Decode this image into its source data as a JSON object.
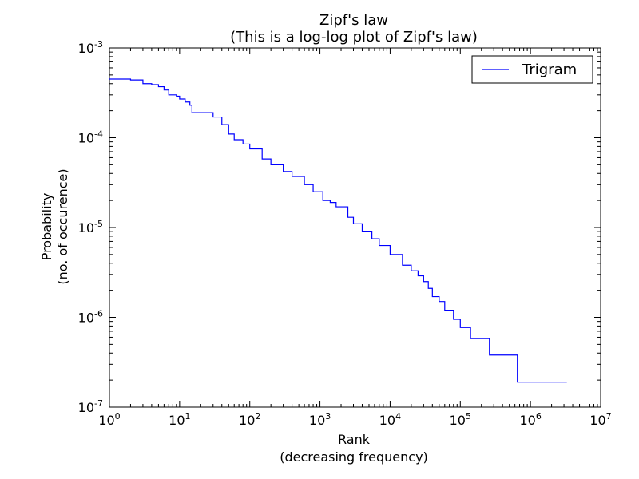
{
  "chart_data": {
    "type": "line",
    "title": "Zipf's law",
    "subtitle": "(This is a log-log plot of Zipf's law)",
    "xlabel_line1": "Rank",
    "xlabel_line2": "(decreasing frequency)",
    "ylabel_line1": "Probability",
    "ylabel_line2": "(no. of occurence)",
    "x_scale": "log",
    "y_scale": "log",
    "xlim": [
      1,
      10000000
    ],
    "ylim": [
      1e-07,
      0.001
    ],
    "x_ticks": [
      {
        "base": "10",
        "exp": "0"
      },
      {
        "base": "10",
        "exp": "1"
      },
      {
        "base": "10",
        "exp": "2"
      },
      {
        "base": "10",
        "exp": "3"
      },
      {
        "base": "10",
        "exp": "4"
      },
      {
        "base": "10",
        "exp": "5"
      },
      {
        "base": "10",
        "exp": "6"
      },
      {
        "base": "10",
        "exp": "7"
      }
    ],
    "y_ticks": [
      {
        "base": "10",
        "exp": "-7"
      },
      {
        "base": "10",
        "exp": "-6"
      },
      {
        "base": "10",
        "exp": "-5"
      },
      {
        "base": "10",
        "exp": "-4"
      },
      {
        "base": "10",
        "exp": "-3"
      }
    ],
    "grid": false,
    "legend": {
      "position": "top-right"
    },
    "series": [
      {
        "name": "Trigram",
        "color": "#0000ff",
        "step": true,
        "points": [
          [
            1,
            0.00045
          ],
          [
            2,
            0.00044
          ],
          [
            3,
            0.0004
          ],
          [
            4,
            0.00039
          ],
          [
            5,
            0.00037
          ],
          [
            6,
            0.00034
          ],
          [
            7,
            0.0003
          ],
          [
            9,
            0.00029
          ],
          [
            10,
            0.00027
          ],
          [
            12,
            0.00025
          ],
          [
            14,
            0.00023
          ],
          [
            15,
            0.00019
          ],
          [
            27,
            0.00019
          ],
          [
            30,
            0.00017
          ],
          [
            40,
            0.00014
          ],
          [
            50,
            0.00011
          ],
          [
            60,
            9.5e-05
          ],
          [
            80,
            8.5e-05
          ],
          [
            100,
            7.5e-05
          ],
          [
            150,
            5.8e-05
          ],
          [
            200,
            5e-05
          ],
          [
            300,
            4.2e-05
          ],
          [
            400,
            3.7e-05
          ],
          [
            600,
            3e-05
          ],
          [
            800,
            2.5e-05
          ],
          [
            1100,
            2e-05
          ],
          [
            1400,
            1.9e-05
          ],
          [
            1700,
            1.7e-05
          ],
          [
            2500,
            1.3e-05
          ],
          [
            3000,
            1.1e-05
          ],
          [
            4000,
            9.1e-06
          ],
          [
            5500,
            7.5e-06
          ],
          [
            7000,
            6.3e-06
          ],
          [
            10000,
            5e-06
          ],
          [
            15000,
            3.8e-06
          ],
          [
            20000,
            3.3e-06
          ],
          [
            25000,
            2.9e-06
          ],
          [
            30000,
            2.5e-06
          ],
          [
            35000,
            2.1e-06
          ],
          [
            40000,
            1.7e-06
          ],
          [
            50000,
            1.5e-06
          ],
          [
            60000,
            1.2e-06
          ],
          [
            80000,
            9.5e-07
          ],
          [
            100000,
            7.7e-07
          ],
          [
            140000,
            5.8e-07
          ],
          [
            260000,
            3.8e-07
          ],
          [
            650000,
            1.9e-07
          ],
          [
            3300000,
            1.9e-07
          ]
        ]
      }
    ]
  }
}
